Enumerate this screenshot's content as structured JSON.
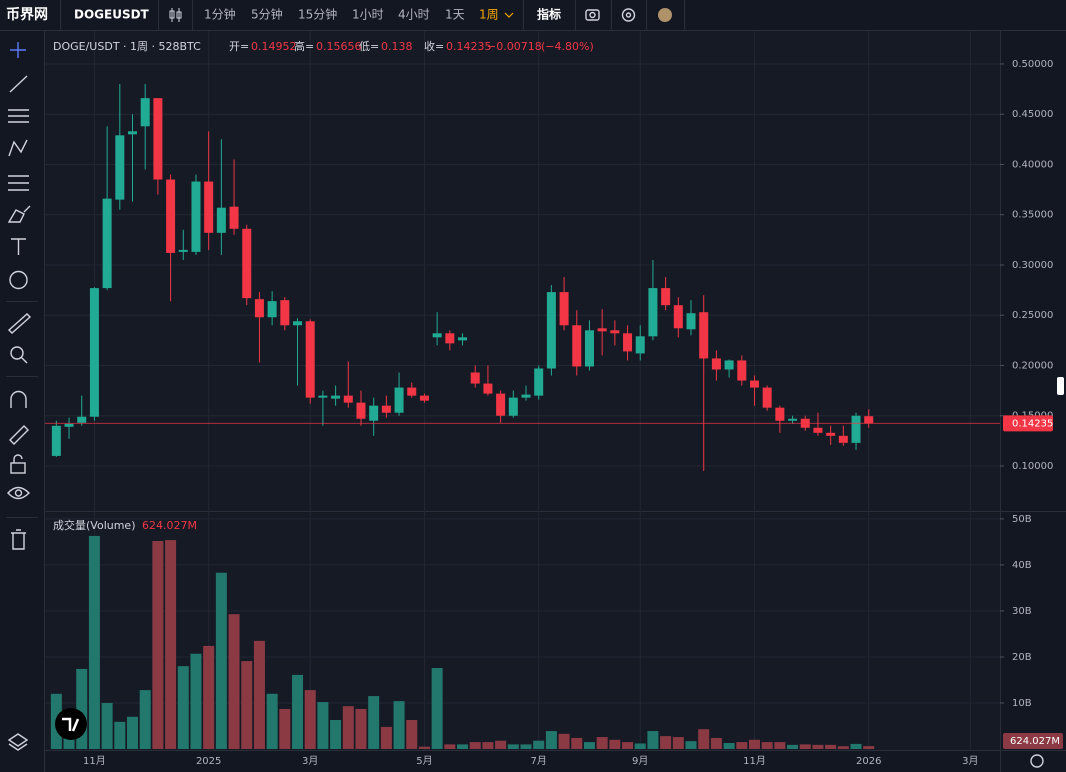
{
  "toolbar": {
    "logo": "币界网",
    "symbol": "DOGEUSDT",
    "intervals": [
      "1分钟",
      "5分钟",
      "15分钟",
      "1小时",
      "4小时",
      "1天",
      "1周"
    ],
    "indicators": "指标"
  },
  "chart_data": {
    "type": "candlestick",
    "title": "DOGE/USDT · 1周 · 528BTC",
    "legend": [
      {
        "label": "开=",
        "value": 0.14952
      },
      {
        "label": "高=",
        "value": 0.15656
      },
      {
        "label": "低=",
        "value": 0.138
      },
      {
        "label": "收=",
        "value": 0.14235
      }
    ],
    "legend_change": "−0.00718",
    "legend_change_pct": "(−4.80%)",
    "categories": [
      null,
      null,
      null,
      "11月",
      null,
      null,
      null,
      null,
      null,
      null,
      null,
      null,
      "2025",
      null,
      null,
      null,
      null,
      null,
      null,
      null,
      "3月",
      null,
      null,
      null,
      null,
      null,
      null,
      null,
      null,
      "5月",
      null,
      null,
      null,
      null,
      null,
      null,
      null,
      null,
      "7月",
      null,
      null,
      null,
      null,
      null,
      null,
      null,
      "9月",
      null,
      null,
      null,
      null,
      null,
      null,
      null,
      null,
      "11月",
      null,
      null,
      null,
      null,
      null,
      null,
      null,
      null,
      "2026",
      null,
      null,
      null,
      null,
      null,
      null,
      null,
      "3月",
      null,
      null
    ],
    "open": [
      0.11,
      0.139,
      0.143,
      0.149,
      0.277,
      0.365,
      0.43,
      0.438,
      0.466,
      0.385,
      0.313,
      0.313,
      0.383,
      0.332,
      0.358,
      0.336,
      0.266,
      0.248,
      0.265,
      0.24,
      0.244,
      0.168,
      0.167,
      0.17,
      0.163,
      0.145,
      0.16,
      0.153,
      0.178,
      0.17,
      0.228,
      0.232,
      0.225,
      0.193,
      0.182,
      0.172,
      0.15,
      0.168,
      0.17,
      0.197,
      0.273,
      0.24,
      0.199,
      0.237,
      0.235,
      0.232,
      0.212,
      0.229,
      0.277,
      0.26,
      0.236,
      0.253,
      0.207,
      0.196,
      0.205,
      0.185,
      0.178,
      0.158,
      0.145,
      0.147,
      0.138,
      0.133,
      0.13,
      0.123,
      0.14952,
      null,
      null,
      null,
      null,
      null,
      null,
      null,
      null,
      null,
      null
    ],
    "high": [
      0.145,
      0.148,
      0.17,
      0.278,
      0.438,
      0.48,
      0.45,
      0.48,
      0.466,
      0.39,
      0.335,
      0.39,
      0.433,
      0.425,
      0.405,
      0.34,
      0.273,
      0.274,
      0.268,
      0.247,
      0.246,
      0.175,
      0.18,
      0.204,
      0.175,
      0.168,
      0.17,
      0.193,
      0.183,
      0.172,
      0.253,
      0.235,
      0.232,
      0.2,
      0.2,
      0.175,
      0.175,
      0.18,
      0.2,
      0.28,
      0.288,
      0.255,
      0.245,
      0.256,
      0.245,
      0.24,
      0.24,
      0.305,
      0.288,
      0.268,
      0.265,
      0.27,
      0.215,
      0.206,
      0.21,
      0.19,
      0.18,
      0.16,
      0.15,
      0.15,
      0.153,
      0.14,
      0.14,
      0.153,
      0.15656,
      null,
      null,
      null,
      null,
      null,
      null,
      null,
      null,
      null,
      null
    ],
    "low": [
      0.109,
      0.127,
      0.14,
      0.145,
      0.275,
      0.355,
      0.363,
      0.395,
      0.37,
      0.264,
      0.305,
      0.31,
      0.315,
      0.31,
      0.33,
      0.26,
      0.203,
      0.24,
      0.235,
      0.18,
      0.162,
      0.14,
      0.16,
      0.158,
      0.14,
      0.13,
      0.148,
      0.15,
      0.168,
      0.163,
      0.22,
      0.215,
      0.22,
      0.178,
      0.17,
      0.143,
      0.148,
      0.165,
      0.166,
      0.19,
      0.235,
      0.19,
      0.195,
      0.21,
      0.22,
      0.205,
      0.205,
      0.225,
      0.255,
      0.228,
      0.23,
      0.095,
      0.185,
      0.188,
      0.18,
      0.16,
      0.155,
      0.133,
      0.142,
      0.135,
      0.13,
      0.121,
      0.12,
      0.116,
      0.138,
      null,
      null,
      null,
      null,
      null,
      null,
      null,
      null,
      null,
      null
    ],
    "close": [
      0.14,
      0.142,
      0.149,
      0.277,
      0.366,
      0.429,
      0.433,
      0.466,
      0.385,
      0.312,
      0.315,
      0.383,
      0.332,
      0.357,
      0.336,
      0.267,
      0.248,
      0.264,
      0.24,
      0.244,
      0.168,
      0.17,
      0.17,
      0.163,
      0.147,
      0.16,
      0.153,
      0.178,
      0.17,
      0.165,
      0.232,
      0.222,
      0.228,
      0.182,
      0.172,
      0.15,
      0.168,
      0.171,
      0.197,
      0.273,
      0.24,
      0.199,
      0.235,
      0.234,
      0.232,
      0.214,
      0.229,
      0.277,
      0.26,
      0.237,
      0.252,
      0.207,
      0.196,
      0.205,
      0.185,
      0.178,
      0.158,
      0.145,
      0.147,
      0.138,
      0.133,
      0.13,
      0.123,
      0.15,
      0.14235,
      null,
      null,
      null,
      null,
      null,
      null,
      null,
      null,
      null,
      null
    ],
    "up_color": "#22ab94",
    "down_color": "#f23645",
    "ylim": [
      0.0552,
      0.5328
    ],
    "yticks": [
      {
        "value": 0.1,
        "label": "0.10000"
      },
      {
        "value": 0.15,
        "label": "0.15000"
      },
      {
        "value": 0.2,
        "label": "0.20000"
      },
      {
        "value": 0.25,
        "label": "0.25000"
      },
      {
        "value": 0.3,
        "label": "0.30000"
      },
      {
        "value": 0.35,
        "label": "0.35000"
      },
      {
        "value": 0.4,
        "label": "0.40000"
      },
      {
        "value": 0.45,
        "label": "0.45000"
      },
      {
        "value": 0.5,
        "label": "0.50000"
      }
    ],
    "grid": true,
    "volume": {
      "title": "成交量(Volume)",
      "last_label": "624.027M",
      "values": [
        12,
        8.5,
        17.4,
        46.3,
        10,
        5.9,
        7,
        12.8,
        45.2,
        45.4,
        18,
        20.7,
        22.4,
        38.3,
        29.3,
        19.1,
        23.5,
        12,
        8.7,
        16.1,
        12.8,
        10.2,
        6.3,
        9.3,
        8.7,
        11.5,
        4.8,
        10.4,
        6.3,
        0.5,
        17.6,
        1,
        1,
        1.5,
        1.5,
        1.8,
        1,
        1,
        1.8,
        3.9,
        3.3,
        2.4,
        1.5,
        2.6,
        2,
        1.5,
        1.2,
        3.9,
        2.8,
        2.6,
        1.7,
        4.3,
        2.4,
        1.3,
        1.5,
        2,
        1.5,
        1.5,
        0.9,
        1,
        0.9,
        0.9,
        0.6,
        1.1,
        0.624027,
        null,
        null,
        null,
        null,
        null,
        null,
        null,
        null,
        null,
        null
      ],
      "up_color": "#22786d",
      "down_color": "#8b3a44",
      "ylim": [
        0,
        51.5
      ],
      "yticks": [
        {
          "value": 10,
          "label": "10B"
        },
        {
          "value": 20,
          "label": "20B"
        },
        {
          "value": 30,
          "label": "30B"
        },
        {
          "value": 40,
          "label": "40B"
        },
        {
          "value": 50,
          "label": "50B"
        }
      ]
    }
  }
}
